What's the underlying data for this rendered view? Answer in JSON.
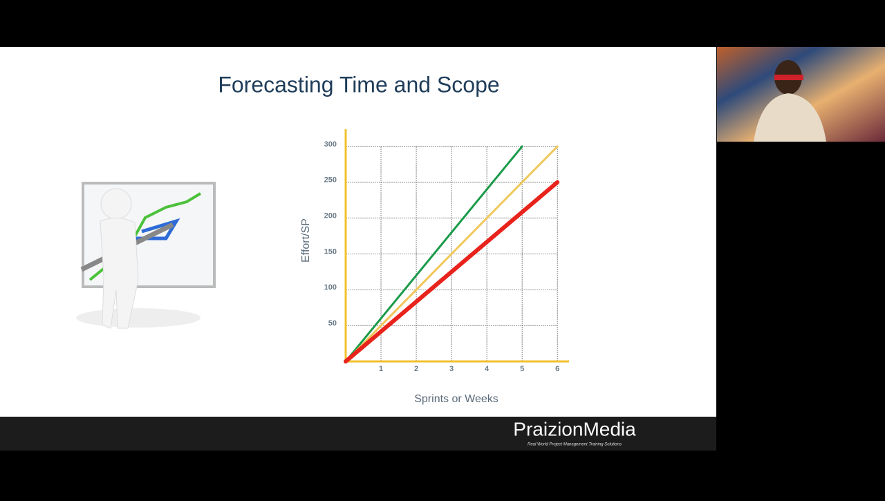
{
  "slide": {
    "title": "Forecasting Time and Scope"
  },
  "logo": {
    "name": "PraizionMedia",
    "tagline": "Real World Project Management Training Solutions"
  },
  "chart_data": {
    "type": "line",
    "xlabel": "Sprints or Weeks",
    "ylabel": "Effort/SP",
    "xlim": [
      0,
      6.33
    ],
    "ylim": [
      0,
      324
    ],
    "xticks": [
      1,
      2,
      3,
      4,
      5,
      6
    ],
    "yticks": [
      50,
      100,
      150,
      200,
      250,
      300
    ],
    "grid": true,
    "axis_color": "#f2c12e",
    "series": [
      {
        "color": "#1a9a4a",
        "x": [
          0,
          5
        ],
        "values": [
          0,
          300
        ],
        "width": 3
      },
      {
        "color": "#f0c75a",
        "x": [
          0,
          6
        ],
        "values": [
          0,
          300
        ],
        "width": 3
      },
      {
        "color": "#e8231c",
        "x": [
          0,
          6
        ],
        "values": [
          0,
          250
        ],
        "width": 6
      }
    ]
  }
}
